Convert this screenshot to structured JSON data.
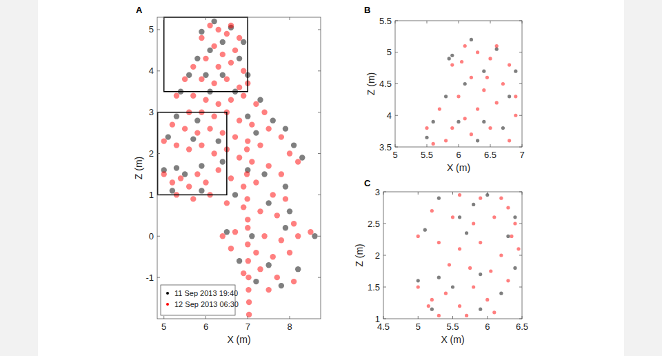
{
  "chart_data": [
    {
      "type": "scatter",
      "title": "A",
      "x_label": "X (m)",
      "y_label": "Z (m)",
      "xlim": [
        4.84,
        8.74
      ],
      "ylim": [
        -2.0,
        5.3
      ],
      "xticks": [
        5,
        6,
        7,
        8
      ],
      "yticks": [
        -1,
        0,
        1,
        2,
        3,
        4,
        5
      ],
      "legend": "lower left",
      "regions": [
        {
          "xlim": [
            5,
            7
          ],
          "ylim": [
            3.5,
            5.3
          ]
        },
        {
          "xlim": [
            4.85,
            6.5
          ],
          "ylim": [
            1,
            3
          ]
        }
      ],
      "series": [
        {
          "name": "11 Sep 2013 19:40",
          "color": "#000000",
          "marker": "dot",
          "x": [
            5.9,
            6.2,
            6.6,
            6.9,
            6.4,
            5.8,
            6.1,
            6.8,
            5.6,
            6.0,
            6.4,
            7.0,
            5.4,
            6.1,
            6.7,
            7.3,
            5.3,
            5.8,
            7.0,
            7.6,
            7.9,
            5.1,
            5.7,
            6.3,
            7.2,
            8.1,
            8.3,
            5.0,
            5.3,
            5.5,
            5.9,
            6.4,
            7.0,
            7.4,
            7.9,
            5.2,
            5.9,
            6.7,
            7.5,
            8.0,
            6.5,
            7.1,
            7.9,
            8.6,
            6.8,
            7.5,
            8.2,
            7.2,
            7.8
          ],
          "values": [
            4.95,
            5.2,
            5.05,
            4.7,
            4.7,
            4.3,
            4.5,
            4.3,
            3.9,
            3.9,
            3.9,
            3.9,
            3.5,
            3.5,
            3.5,
            3.3,
            2.9,
            2.8,
            2.9,
            2.8,
            2.6,
            2.4,
            2.35,
            2.3,
            2.5,
            2.2,
            1.9,
            1.6,
            1.65,
            1.5,
            1.7,
            1.8,
            1.6,
            1.5,
            1.2,
            1.1,
            1.1,
            1.0,
            0.8,
            0.6,
            0.1,
            0.0,
            0.2,
            0.0,
            -0.6,
            -0.7,
            -0.8,
            -1.1,
            -1.2
          ]
        },
        {
          "name": "12 Sep 2013 06:30",
          "color": "#ff0000",
          "marker": "dot",
          "x": [
            6.1,
            6.3,
            6.5,
            6.6,
            6.8,
            5.9,
            6.2,
            6.4,
            6.7,
            6.0,
            5.7,
            6.3,
            6.6,
            6.9,
            5.5,
            5.9,
            6.2,
            6.5,
            6.8,
            7.0,
            5.3,
            5.7,
            6.0,
            6.3,
            6.6,
            6.9,
            7.2,
            7.4,
            5.6,
            5.9,
            6.2,
            6.5,
            6.8,
            7.1,
            7.5,
            7.8,
            5.2,
            5.5,
            5.8,
            6.1,
            6.4,
            6.7,
            7.0,
            7.3,
            8.0,
            8.2,
            5.0,
            5.3,
            5.6,
            5.9,
            6.2,
            6.5,
            6.8,
            7.1,
            7.5,
            7.8,
            5.0,
            5.2,
            5.4,
            5.6,
            5.8,
            6.0,
            6.3,
            6.6,
            6.9,
            7.2,
            7.6,
            7.9,
            5.3,
            5.7,
            6.1,
            6.5,
            6.9,
            7.3,
            7.7,
            8.1,
            6.4,
            6.7,
            7.0,
            7.4,
            7.8,
            8.2,
            8.5,
            6.6,
            7.2,
            7.6,
            8.0,
            6.9,
            7.3,
            7.7,
            8.1,
            7.5,
            7.03,
            7.03,
            7.02,
            7.02,
            7.01,
            7.0,
            7.0,
            6.99,
            6.98,
            6.98
          ],
          "values": [
            5.1,
            5.0,
            4.9,
            5.1,
            4.8,
            4.8,
            4.6,
            4.4,
            4.5,
            4.3,
            4.1,
            4.1,
            4.2,
            4.0,
            3.8,
            3.8,
            3.7,
            3.8,
            3.6,
            3.7,
            3.4,
            3.4,
            3.3,
            3.2,
            3.3,
            3.4,
            3.2,
            3.0,
            3.0,
            3.0,
            2.9,
            3.0,
            2.8,
            2.7,
            2.6,
            2.4,
            2.7,
            2.6,
            2.5,
            2.6,
            2.5,
            2.4,
            2.3,
            2.2,
            2.0,
            1.8,
            2.3,
            2.2,
            2.1,
            2.2,
            2.0,
            2.1,
            1.9,
            1.8,
            1.7,
            1.5,
            1.5,
            1.3,
            1.4,
            1.2,
            1.5,
            1.3,
            1.6,
            1.4,
            1.2,
            1.3,
            1.0,
            0.9,
            1.0,
            0.9,
            1.0,
            0.8,
            0.7,
            0.6,
            0.5,
            0.3,
            0.0,
            0.1,
            0.2,
            0.0,
            -0.1,
            0.0,
            0.1,
            -0.3,
            -0.4,
            -0.5,
            -0.4,
            -0.9,
            -0.8,
            -1.0,
            -1.1,
            -1.3,
            -1.9,
            -1.6,
            -1.3,
            -1.0,
            -0.6,
            -0.2,
            0.4,
            0.9,
            1.5,
            2.1
          ]
        }
      ]
    },
    {
      "type": "scatter",
      "title": "B",
      "x_label": "X (m)",
      "y_label": "Z (m)",
      "xlim": [
        5,
        7
      ],
      "ylim": [
        3.5,
        5.5
      ],
      "xticks": [
        5,
        5.5,
        6,
        6.5,
        7
      ],
      "yticks": [
        3.5,
        4,
        4.5,
        5,
        5.5
      ],
      "series": [
        {
          "color": "#000000",
          "marker": "dot",
          "x": [
            5.9,
            6.2,
            6.6,
            6.9,
            6.4,
            5.8,
            6.1,
            6.8,
            5.6,
            6.0,
            6.4,
            5.85,
            6.3,
            6.7,
            5.5
          ],
          "values": [
            4.95,
            5.2,
            5.05,
            4.7,
            4.7,
            4.3,
            4.5,
            4.3,
            3.9,
            3.9,
            3.9,
            4.9,
            3.6,
            3.8,
            3.65
          ]
        },
        {
          "color": "#ff0000",
          "marker": "dot",
          "x": [
            6.1,
            6.3,
            6.5,
            6.6,
            6.8,
            5.9,
            6.2,
            6.4,
            6.7,
            6.0,
            5.7,
            6.3,
            6.6,
            6.9,
            5.5,
            5.9,
            6.2,
            6.5,
            6.8,
            5.8,
            6.1,
            6.45,
            6.05,
            5.6,
            6.9
          ],
          "values": [
            5.1,
            5.0,
            4.9,
            5.1,
            4.8,
            4.8,
            4.6,
            4.4,
            4.5,
            4.3,
            4.1,
            4.1,
            4.2,
            4.0,
            3.8,
            3.8,
            3.7,
            3.8,
            3.6,
            3.6,
            3.95,
            4.6,
            4.85,
            3.55,
            4.3
          ]
        }
      ]
    },
    {
      "type": "scatter",
      "title": "C",
      "x_label": "X (m)",
      "y_label": "Z (m)",
      "xlim": [
        4.5,
        6.5
      ],
      "ylim": [
        1,
        3
      ],
      "xticks": [
        4.5,
        5,
        5.5,
        6,
        6.5
      ],
      "yticks": [
        1,
        1.5,
        2,
        2.5,
        3
      ],
      "series": [
        {
          "color": "#000000",
          "marker": "dot",
          "x": [
            5.3,
            5.8,
            5.1,
            5.7,
            6.3,
            5.0,
            5.3,
            5.5,
            5.9,
            6.4,
            5.2,
            5.9,
            6.0,
            6.4,
            5.6,
            6.2
          ],
          "values": [
            2.9,
            2.8,
            2.4,
            2.35,
            2.3,
            1.6,
            1.65,
            1.5,
            1.7,
            1.8,
            1.15,
            1.15,
            2.95,
            2.6,
            2.6,
            1.4
          ]
        },
        {
          "color": "#ff0000",
          "marker": "dot",
          "x": [
            5.6,
            5.9,
            6.2,
            5.2,
            5.5,
            5.8,
            6.1,
            6.4,
            5.0,
            5.3,
            5.6,
            5.9,
            6.2,
            6.45,
            5.0,
            5.2,
            5.4,
            5.6,
            5.8,
            6.0,
            6.3,
            5.3,
            5.7,
            6.1,
            5.75,
            6.05,
            6.35,
            6.3,
            5.45,
            5.15
          ],
          "values": [
            2.95,
            2.9,
            2.9,
            2.7,
            2.6,
            2.5,
            2.6,
            2.5,
            2.3,
            2.2,
            2.1,
            2.2,
            2.0,
            2.1,
            1.5,
            1.3,
            1.4,
            1.2,
            1.5,
            1.3,
            1.6,
            1.05,
            1.05,
            1.1,
            1.8,
            1.75,
            2.3,
            2.75,
            1.85,
            1.2
          ]
        }
      ]
    }
  ]
}
